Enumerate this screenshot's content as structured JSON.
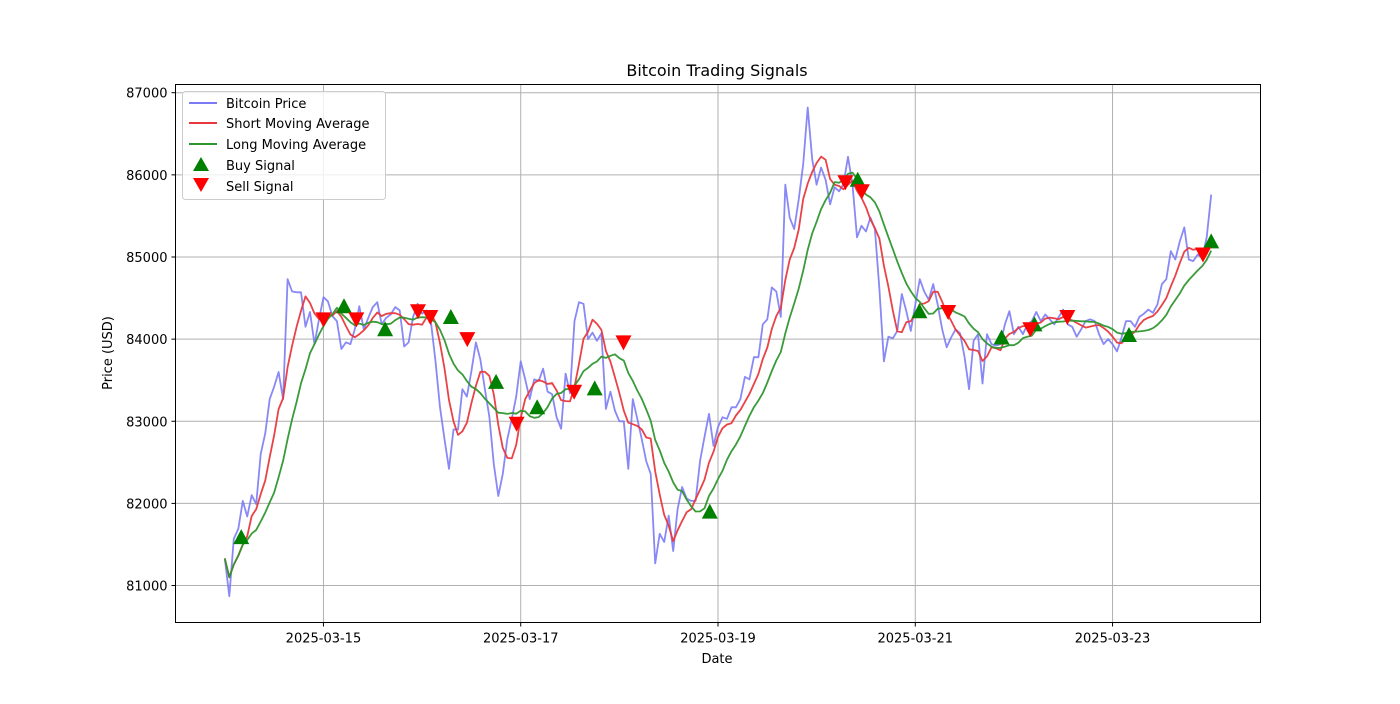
{
  "chart_data": {
    "type": "line",
    "title": "Bitcoin Trading Signals",
    "xlabel": "Date",
    "ylabel": "Price (USD)",
    "ylim": [
      80550,
      87100
    ],
    "xlim": [
      "2025-03-13 12:00",
      "2025-03-24 12:00"
    ],
    "x_ticks": [
      "2025-03-15",
      "2025-03-17",
      "2025-03-19",
      "2025-03-21",
      "2025-03-23"
    ],
    "y_ticks": [
      81000,
      82000,
      83000,
      84000,
      85000,
      86000,
      87000
    ],
    "grid": true,
    "legend_position": "top-left",
    "legend": [
      "Bitcoin Price",
      "Short Moving Average",
      "Long Moving Average",
      "Buy Signal",
      "Sell Signal"
    ],
    "colors": {
      "price": "#7b7bf5",
      "short": "#e8383d",
      "long": "#2e962e",
      "buy": "#008000",
      "sell": "#ff0000",
      "grid": "#b0b0b0"
    },
    "price_start": "2025-03-14 00:00",
    "price_end": "2025-03-24 00:00",
    "short_window": 5,
    "long_window": 12,
    "price": [
      81330,
      80870,
      81570,
      81690,
      82030,
      81840,
      82100,
      81990,
      82600,
      82850,
      83270,
      83420,
      83600,
      83270,
      84730,
      84580,
      84570,
      84570,
      84150,
      84330,
      83940,
      84240,
      84510,
      84460,
      84280,
      84220,
      83880,
      83960,
      83940,
      84120,
      84400,
      84120,
      84260,
      84390,
      84450,
      84180,
      84260,
      84300,
      84390,
      84350,
      83910,
      83960,
      84270,
      84430,
      84310,
      84350,
      84190,
      83730,
      83170,
      82780,
      82420,
      82900,
      82900,
      83390,
      83300,
      83610,
      83960,
      83750,
      83390,
      83060,
      82480,
      82090,
      82360,
      82780,
      83030,
      83300,
      83730,
      83510,
      83270,
      83510,
      83490,
      83640,
      83360,
      83330,
      83050,
      82910,
      83580,
      83340,
      84220,
      84450,
      84430,
      84000,
      84080,
      83980,
      84070,
      83150,
      83360,
      83130,
      83000,
      83000,
      82420,
      83270,
      83030,
      82780,
      82510,
      82360,
      81270,
      81630,
      81530,
      81850,
      81420,
      81930,
      82200,
      82060,
      82030,
      82030,
      82520,
      82810,
      83090,
      82700,
      82930,
      83050,
      83030,
      83170,
      83170,
      83270,
      83540,
      83510,
      83780,
      83780,
      84180,
      84240,
      84630,
      84580,
      84270,
      85880,
      85480,
      85340,
      85700,
      86130,
      86820,
      86190,
      85880,
      86090,
      85940,
      85640,
      85850,
      85800,
      85890,
      86220,
      85880,
      85240,
      85380,
      85310,
      85480,
      85340,
      84610,
      83730,
      84030,
      84010,
      84100,
      84550,
      84340,
      84100,
      84420,
      84730,
      84580,
      84480,
      84670,
      84420,
      84120,
      83900,
      84020,
      84120,
      84070,
      83780,
      83390,
      83980,
      84060,
      83460,
      84060,
      83940,
      83920,
      83940,
      84180,
      84340,
      84060,
      84150,
      84060,
      84180,
      84220,
      84330,
      84220,
      84300,
      84240,
      84180,
      84270,
      84360,
      84180,
      84150,
      84030,
      84120,
      84220,
      84240,
      84220,
      84060,
      83940,
      84000,
      83940,
      83850,
      84020,
      84220,
      84220,
      84150,
      84270,
      84310,
      84360,
      84320,
      84420,
      84670,
      84730,
      85070,
      84970,
      85190,
      85360,
      84970,
      84950,
      85030,
      84990,
      85240,
      85760
    ],
    "signals": [
      {
        "type": "buy",
        "date": "2025-03-14 04:00",
        "price": 81590
      },
      {
        "type": "buy",
        "date": "2025-03-15 05:00",
        "price": 84400
      },
      {
        "type": "buy",
        "date": "2025-03-15 15:00",
        "price": 84120
      },
      {
        "type": "buy",
        "date": "2025-03-16 07:00",
        "price": 84270
      },
      {
        "type": "buy",
        "date": "2025-03-16 18:00",
        "price": 83480
      },
      {
        "type": "buy",
        "date": "2025-03-17 04:00",
        "price": 83170
      },
      {
        "type": "buy",
        "date": "2025-03-17 18:00",
        "price": 83400
      },
      {
        "type": "buy",
        "date": "2025-03-18 22:00",
        "price": 81900
      },
      {
        "type": "buy",
        "date": "2025-03-20 10:00",
        "price": 85940
      },
      {
        "type": "buy",
        "date": "2025-03-21 01:00",
        "price": 84340
      },
      {
        "type": "buy",
        "date": "2025-03-21 21:00",
        "price": 84020
      },
      {
        "type": "buy",
        "date": "2025-03-22 05:00",
        "price": 84180
      },
      {
        "type": "buy",
        "date": "2025-03-23 04:00",
        "price": 84050
      },
      {
        "type": "buy",
        "date": "2025-03-24 00:00",
        "price": 85190
      },
      {
        "type": "sell",
        "date": "2025-03-15 00:00",
        "price": 84240
      },
      {
        "type": "sell",
        "date": "2025-03-15 08:00",
        "price": 84240
      },
      {
        "type": "sell",
        "date": "2025-03-15 23:00",
        "price": 84340
      },
      {
        "type": "sell",
        "date": "2025-03-16 02:00",
        "price": 84270
      },
      {
        "type": "sell",
        "date": "2025-03-16 11:00",
        "price": 84000
      },
      {
        "type": "sell",
        "date": "2025-03-16 23:00",
        "price": 82970
      },
      {
        "type": "sell",
        "date": "2025-03-17 13:00",
        "price": 83360
      },
      {
        "type": "sell",
        "date": "2025-03-18 01:00",
        "price": 83960
      },
      {
        "type": "sell",
        "date": "2025-03-20 07:00",
        "price": 85910
      },
      {
        "type": "sell",
        "date": "2025-03-20 11:00",
        "price": 85800
      },
      {
        "type": "sell",
        "date": "2025-03-21 08:00",
        "price": 84330
      },
      {
        "type": "sell",
        "date": "2025-03-22 04:00",
        "price": 84120
      },
      {
        "type": "sell",
        "date": "2025-03-22 13:00",
        "price": 84270
      },
      {
        "type": "sell",
        "date": "2025-03-23 22:00",
        "price": 85030
      }
    ]
  }
}
